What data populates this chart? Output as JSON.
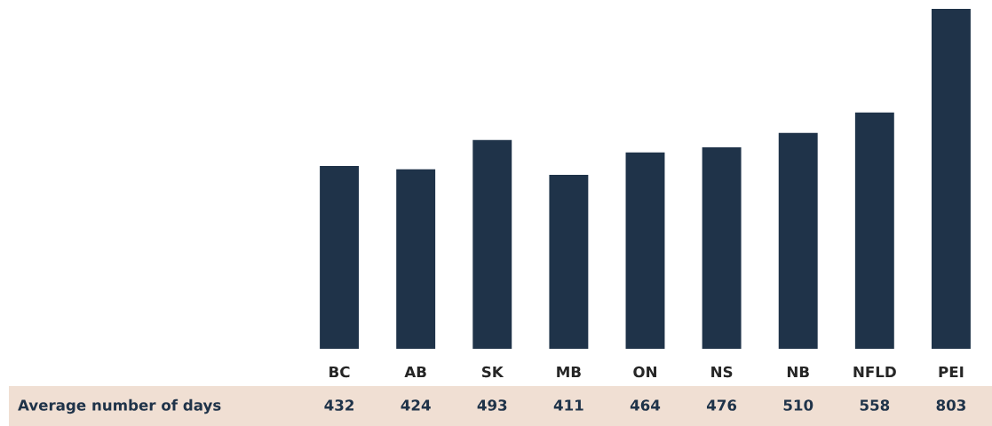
{
  "chart_data": {
    "type": "bar",
    "categories": [
      "BC",
      "AB",
      "SK",
      "MB",
      "ON",
      "NS",
      "NB",
      "NFLD",
      "PEI"
    ],
    "values": [
      432,
      424,
      493,
      411,
      464,
      476,
      510,
      558,
      803
    ],
    "color": "#1f3349",
    "data_labels": true,
    "annotations": [
      "Average number of days"
    ]
  }
}
